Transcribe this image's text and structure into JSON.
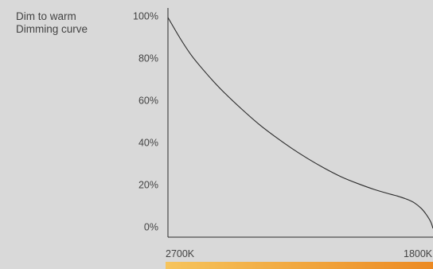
{
  "chart_data": {
    "type": "line",
    "title": "Dim to warm",
    "subtitle": "Dimming curve",
    "xlabel": "",
    "ylabel": "",
    "x_tick_labels": [
      "2700K",
      "1800K"
    ],
    "y_tick_labels": [
      "100%",
      "80%",
      "60%",
      "40%",
      "20%",
      "0%"
    ],
    "y_ticks": [
      100,
      80,
      60,
      40,
      20,
      0
    ],
    "ylim": [
      0,
      100
    ],
    "xlim": [
      2700,
      1800
    ],
    "grid": false,
    "series": [
      {
        "values_x": [
          2700,
          2658,
          2620,
          2582,
          2544,
          2506,
          2449,
          2392,
          2336,
          2280,
          2224,
          2168,
          2112,
          2056,
          2000,
          1944,
          1920,
          1888,
          1864,
          1840,
          1824,
          1808,
          1800
        ],
        "values_y": [
          100,
          90,
          82,
          75.5,
          69.5,
          64,
          56.5,
          49.5,
          43.5,
          38,
          33,
          28.5,
          24.5,
          21.3,
          18.5,
          16.2,
          15.3,
          13.8,
          12.2,
          9.5,
          6.8,
          3.2,
          0
        ]
      }
    ],
    "line_color": "#2a2a2a",
    "color_bar": {
      "from": "#f6c45c",
      "to": "#ec8a23"
    }
  }
}
